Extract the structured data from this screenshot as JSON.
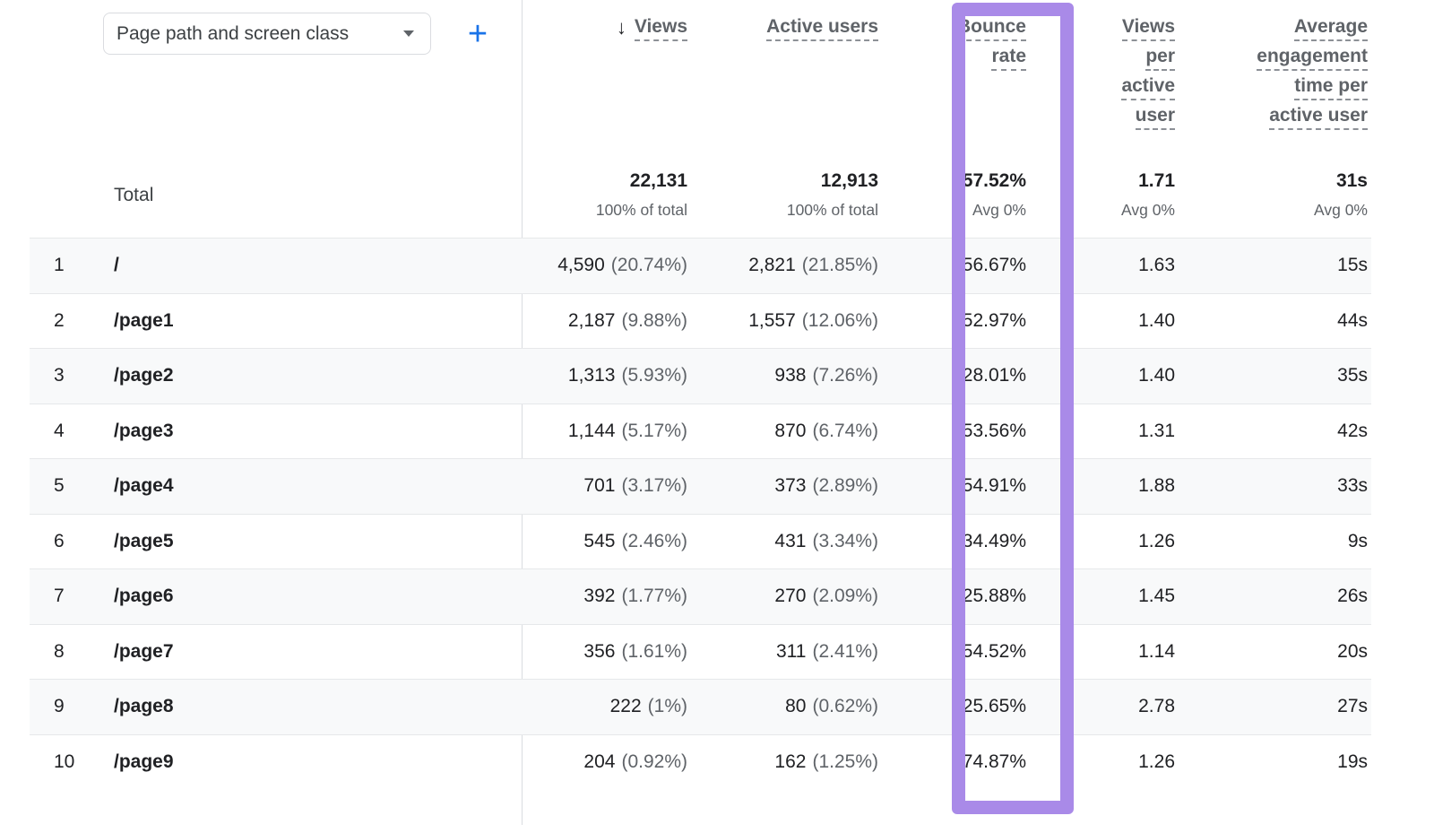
{
  "toolbar": {
    "dimension_label": "Page path and screen class",
    "add_button": "+"
  },
  "header": {
    "views": {
      "sort_arrow": "↓",
      "label": "Views"
    },
    "active_users": {
      "label": "Active users"
    },
    "bounce_rate": {
      "line1": "Bounce",
      "line2": "rate"
    },
    "views_per_active_user": {
      "line1": "Views",
      "line2": "per",
      "line3": "active",
      "line4": "user"
    },
    "avg_engagement": {
      "line1": "Average",
      "line2": "engagement",
      "line3": "time per",
      "line4": "active user"
    }
  },
  "total": {
    "label": "Total",
    "views": "22,131",
    "views_sub": "100% of total",
    "active_users": "12,913",
    "active_users_sub": "100% of total",
    "bounce_rate": "57.52%",
    "bounce_rate_sub": "Avg 0%",
    "views_per_active_user": "1.71",
    "views_per_active_user_sub": "Avg 0%",
    "avg_engagement": "31s",
    "avg_engagement_sub": "Avg 0%"
  },
  "rows": [
    {
      "rank": "1",
      "path": "/",
      "views": "4,590",
      "views_pct": "(20.74%)",
      "active_users": "2,821",
      "active_users_pct": "(21.85%)",
      "bounce_rate": "56.67%",
      "views_per_active_user": "1.63",
      "avg_engagement": "15s"
    },
    {
      "rank": "2",
      "path": "/page1",
      "views": "2,187",
      "views_pct": "(9.88%)",
      "active_users": "1,557",
      "active_users_pct": "(12.06%)",
      "bounce_rate": "52.97%",
      "views_per_active_user": "1.40",
      "avg_engagement": "44s"
    },
    {
      "rank": "3",
      "path": "/page2",
      "views": "1,313",
      "views_pct": "(5.93%)",
      "active_users": "938",
      "active_users_pct": "(7.26%)",
      "bounce_rate": "28.01%",
      "views_per_active_user": "1.40",
      "avg_engagement": "35s"
    },
    {
      "rank": "4",
      "path": "/page3",
      "views": "1,144",
      "views_pct": "(5.17%)",
      "active_users": "870",
      "active_users_pct": "(6.74%)",
      "bounce_rate": "53.56%",
      "views_per_active_user": "1.31",
      "avg_engagement": "42s"
    },
    {
      "rank": "5",
      "path": "/page4",
      "views": "701",
      "views_pct": "(3.17%)",
      "active_users": "373",
      "active_users_pct": "(2.89%)",
      "bounce_rate": "54.91%",
      "views_per_active_user": "1.88",
      "avg_engagement": "33s"
    },
    {
      "rank": "6",
      "path": "/page5",
      "views": "545",
      "views_pct": "(2.46%)",
      "active_users": "431",
      "active_users_pct": "(3.34%)",
      "bounce_rate": "34.49%",
      "views_per_active_user": "1.26",
      "avg_engagement": "9s"
    },
    {
      "rank": "7",
      "path": "/page6",
      "views": "392",
      "views_pct": "(1.77%)",
      "active_users": "270",
      "active_users_pct": "(2.09%)",
      "bounce_rate": "25.88%",
      "views_per_active_user": "1.45",
      "avg_engagement": "26s"
    },
    {
      "rank": "8",
      "path": "/page7",
      "views": "356",
      "views_pct": "(1.61%)",
      "active_users": "311",
      "active_users_pct": "(2.41%)",
      "bounce_rate": "54.52%",
      "views_per_active_user": "1.14",
      "avg_engagement": "20s"
    },
    {
      "rank": "9",
      "path": "/page8",
      "views": "222",
      "views_pct": "(1%)",
      "active_users": "80",
      "active_users_pct": "(0.62%)",
      "bounce_rate": "25.65%",
      "views_per_active_user": "2.78",
      "avg_engagement": "27s"
    },
    {
      "rank": "10",
      "path": "/page9",
      "views": "204",
      "views_pct": "(0.92%)",
      "active_users": "162",
      "active_users_pct": "(1.25%)",
      "bounce_rate": "74.87%",
      "views_per_active_user": "1.26",
      "avg_engagement": "19s"
    }
  ],
  "colors": {
    "highlight_purple": "#a98ae8",
    "accent_blue": "#1a73e8",
    "alt_row": "#f8f9fa"
  }
}
